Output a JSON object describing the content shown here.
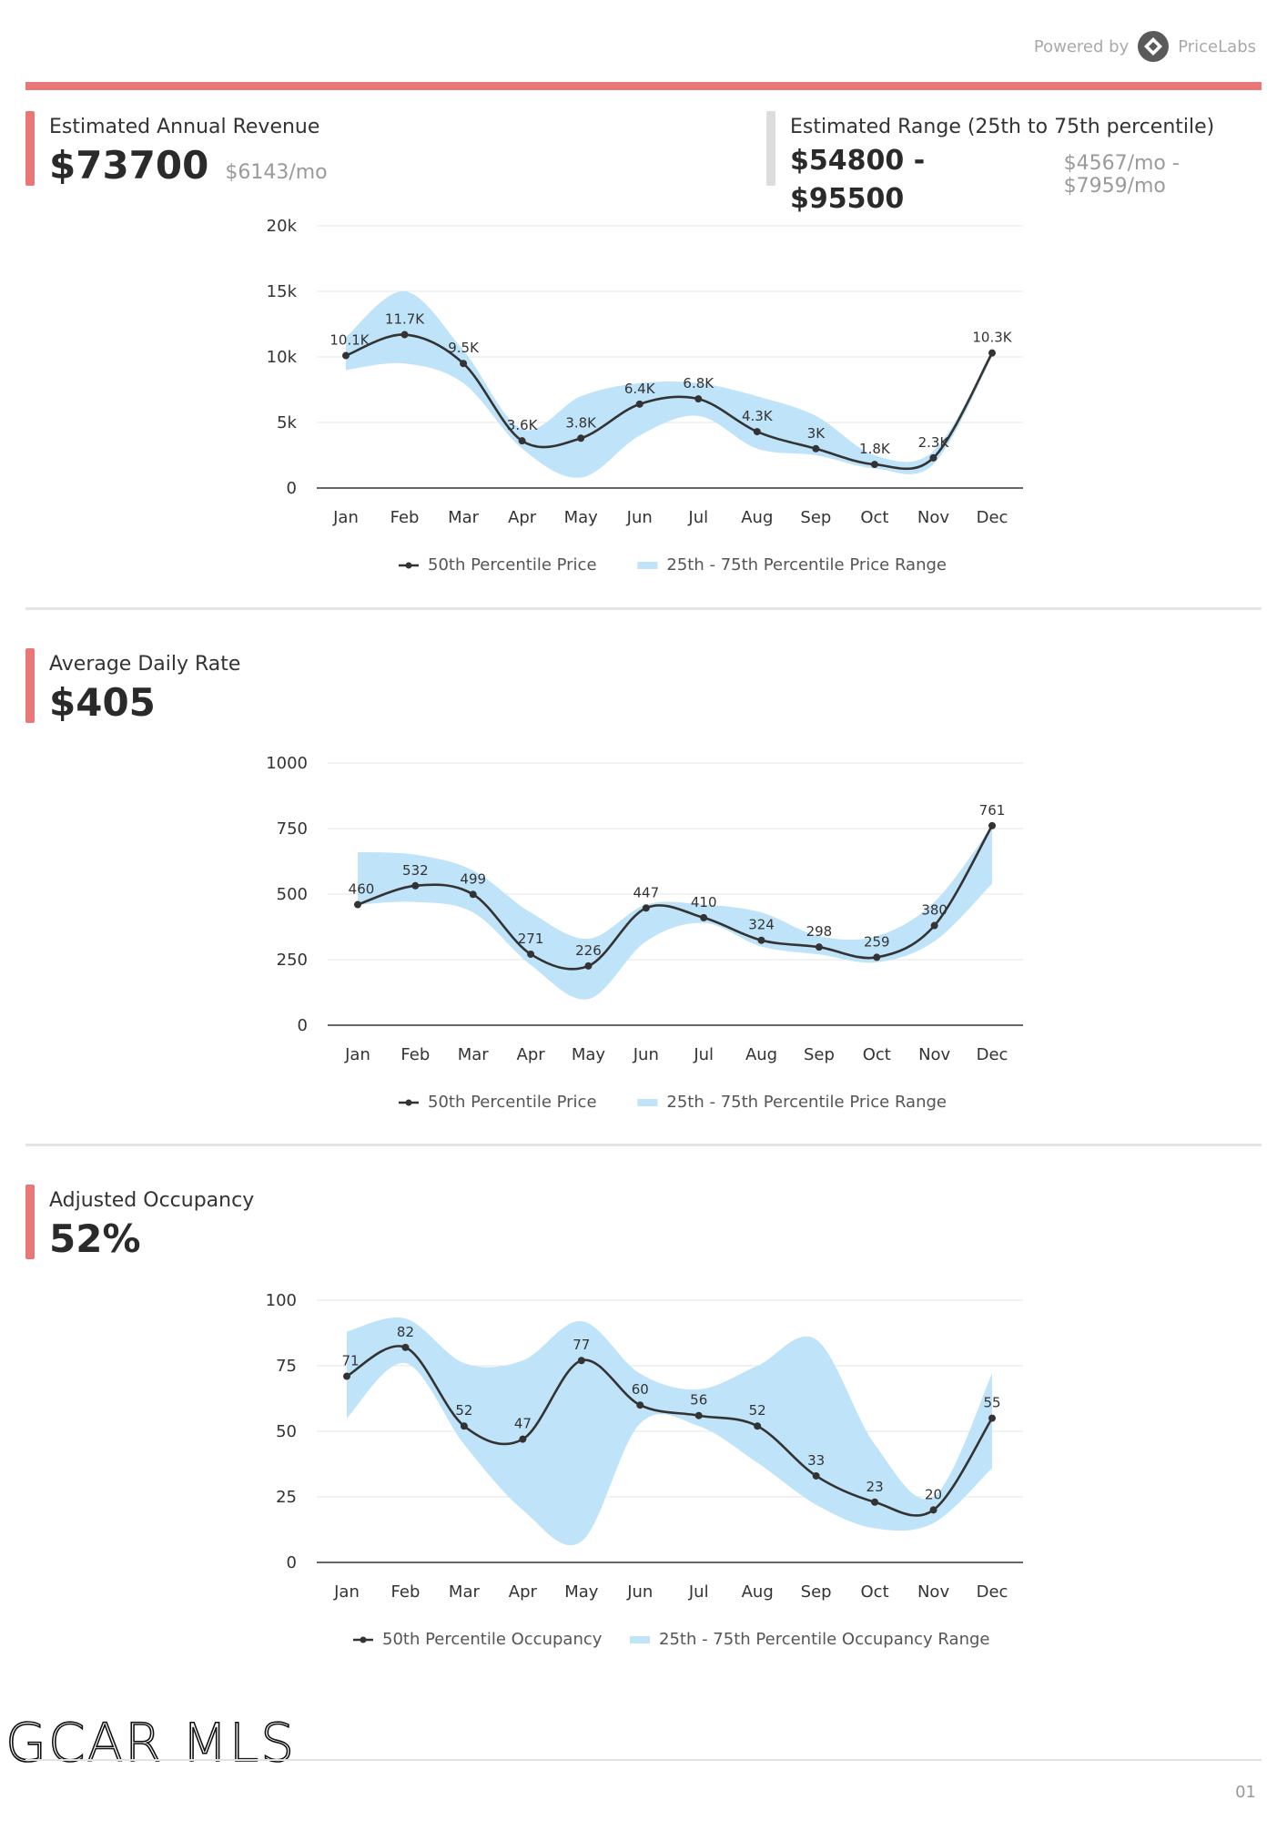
{
  "header": {
    "powered_by": "Powered by",
    "brand": "PriceLabs",
    "brand_icon": "pricelabs-logo-icon"
  },
  "revenue": {
    "label": "Estimated Annual Revenue",
    "value": "$73700",
    "per_month": "$6143/mo",
    "range_label": "Estimated Range (25th to 75th percentile)",
    "range_value": "$54800 - $95500",
    "range_per_month": "$4567/mo - $7959/mo"
  },
  "adr": {
    "label": "Average Daily Rate",
    "value": "$405"
  },
  "occupancy": {
    "label": "Adjusted Occupancy",
    "value": "52%"
  },
  "colors": {
    "accent": "#e97777",
    "band": "#bfe3f8",
    "line": "#333333"
  },
  "chart_data": [
    {
      "type": "line",
      "categories": [
        "Jan",
        "Feb",
        "Mar",
        "Apr",
        "May",
        "Jun",
        "Jul",
        "Aug",
        "Sep",
        "Oct",
        "Nov",
        "Dec"
      ],
      "ylim": [
        0,
        20000
      ],
      "yticks": [
        0,
        5000,
        10000,
        15000,
        20000
      ],
      "ytick_labels": [
        "0",
        "5k",
        "10k",
        "15k",
        "20k"
      ],
      "grid": true,
      "legend": "bottom",
      "series": [
        {
          "name": "50th Percentile Price",
          "values": [
            10100,
            11700,
            9500,
            3600,
            3800,
            6400,
            6800,
            4300,
            3000,
            1800,
            2300,
            10300
          ],
          "labels": [
            "10.1K",
            "11.7K",
            "9.5K",
            "3.6K",
            "3.8K",
            "6.4K",
            "6.8K",
            "4.3K",
            "3K",
            "1.8K",
            "2.3K",
            "10.3K"
          ]
        },
        {
          "name": "25th - 75th Percentile Price Range",
          "type": "range",
          "low": [
            9000,
            9500,
            8000,
            3000,
            800,
            4000,
            5500,
            3000,
            2500,
            1500,
            1800,
            10000
          ],
          "high": [
            11500,
            15000,
            10500,
            4500,
            7000,
            8000,
            8000,
            7000,
            5500,
            2500,
            2800,
            10300
          ]
        }
      ]
    },
    {
      "type": "line",
      "categories": [
        "Jan",
        "Feb",
        "Mar",
        "Apr",
        "May",
        "Jun",
        "Jul",
        "Aug",
        "Sep",
        "Oct",
        "Nov",
        "Dec"
      ],
      "ylim": [
        0,
        1000
      ],
      "yticks": [
        0,
        250,
        500,
        750,
        1000
      ],
      "ytick_labels": [
        "0",
        "250",
        "500",
        "750",
        "1000"
      ],
      "grid": true,
      "legend": "bottom",
      "series": [
        {
          "name": "50th Percentile Price",
          "values": [
            460,
            532,
            499,
            271,
            226,
            447,
            410,
            324,
            298,
            259,
            380,
            761
          ],
          "labels": [
            "460",
            "532",
            "499",
            "271",
            "226",
            "447",
            "410",
            "324",
            "298",
            "259",
            "380",
            "761"
          ]
        },
        {
          "name": "25th - 75th Percentile Price Range",
          "type": "range",
          "low": [
            460,
            470,
            430,
            230,
            100,
            320,
            390,
            300,
            270,
            240,
            320,
            540
          ],
          "high": [
            660,
            650,
            590,
            430,
            330,
            460,
            460,
            430,
            340,
            340,
            470,
            760
          ]
        }
      ]
    },
    {
      "type": "line",
      "categories": [
        "Jan",
        "Feb",
        "Mar",
        "Apr",
        "May",
        "Jun",
        "Jul",
        "Aug",
        "Sep",
        "Oct",
        "Nov",
        "Dec"
      ],
      "ylim": [
        0,
        100
      ],
      "yticks": [
        0,
        25,
        50,
        75,
        100
      ],
      "ytick_labels": [
        "0",
        "25",
        "50",
        "75",
        "100"
      ],
      "grid": true,
      "legend": "bottom",
      "series": [
        {
          "name": "50th Percentile Occupancy",
          "values": [
            71,
            82,
            52,
            47,
            77,
            60,
            56,
            52,
            33,
            23,
            20,
            55
          ],
          "labels": [
            "71",
            "82",
            "52",
            "47",
            "77",
            "60",
            "56",
            "52",
            "33",
            "23",
            "20",
            "55"
          ]
        },
        {
          "name": "25th - 75th Percentile Occupancy Range",
          "type": "range",
          "low": [
            55,
            76,
            45,
            20,
            8,
            53,
            52,
            38,
            22,
            13,
            15,
            36
          ],
          "high": [
            88,
            93,
            76,
            77,
            92,
            72,
            66,
            75,
            85,
            45,
            25,
            72
          ]
        }
      ]
    }
  ],
  "footer": {
    "logo": "GCAR MLS",
    "page": "01"
  }
}
